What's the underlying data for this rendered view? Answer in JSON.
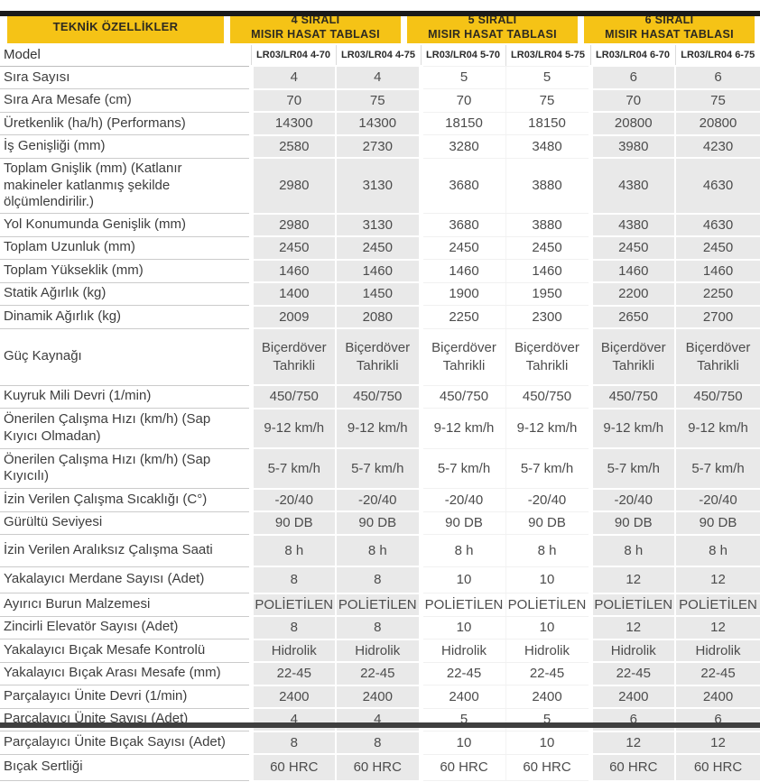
{
  "colors": {
    "accent": "#F5C316",
    "band_gray": "#E9E9E9",
    "bar_dark": "#1A1A1A",
    "bar_bottom": "#3F3F3F"
  },
  "header": {
    "corner": "TEKNİK ÖZELLİKLER",
    "groups": [
      {
        "line1": "4 SIRALI",
        "line2": "MISIR HASAT TABLASI"
      },
      {
        "line1": "5 SIRALI",
        "line2": "MISIR HASAT TABLASI"
      },
      {
        "line1": "6 SIRALI",
        "line2": "MISIR HASAT TABLASI"
      }
    ]
  },
  "table": {
    "model_label": "Model",
    "models": [
      "LR03/LR04 4-70",
      "LR03/LR04 4-75",
      "LR03/LR04 5-70",
      "LR03/LR04 5-75",
      "LR03/LR04 6-70",
      "LR03/LR04 6-75"
    ],
    "rows": [
      {
        "label": "Sıra Sayısı",
        "values": [
          "4",
          "4",
          "5",
          "5",
          "6",
          "6"
        ]
      },
      {
        "label": "Sıra Ara Mesafe (cm)",
        "values": [
          "70",
          "75",
          "70",
          "75",
          "70",
          "75"
        ]
      },
      {
        "label": "Üretkenlik (ha/h) (Performans)",
        "values": [
          "14300",
          "14300",
          "18150",
          "18150",
          "20800",
          "20800"
        ]
      },
      {
        "label": "İş Genişliği (mm)",
        "values": [
          "2580",
          "2730",
          "3280",
          "3480",
          "3980",
          "4230"
        ]
      },
      {
        "label": "Toplam Gnişlik (mm) (Katlanır makineler katlanmış şekilde ölçümlendirilir.)",
        "values": [
          "2980",
          "3130",
          "3680",
          "3880",
          "4380",
          "4630"
        ]
      },
      {
        "label": "Yol Konumunda Genişlik (mm)",
        "values": [
          "2980",
          "3130",
          "3680",
          "3880",
          "4380",
          "4630"
        ]
      },
      {
        "label": "Toplam Uzunluk (mm)",
        "values": [
          "2450",
          "2450",
          "2450",
          "2450",
          "2450",
          "2450"
        ]
      },
      {
        "label": "Toplam Yükseklik (mm)",
        "values": [
          "1460",
          "1460",
          "1460",
          "1460",
          "1460",
          "1460"
        ]
      },
      {
        "label": "Statik Ağırlık (kg)",
        "values": [
          "1400",
          "1450",
          "1900",
          "1950",
          "2200",
          "2250"
        ]
      },
      {
        "label": "Dinamik Ağırlık (kg)",
        "values": [
          "2009",
          "2080",
          "2250",
          "2300",
          "2650",
          "2700"
        ]
      },
      {
        "label": "Güç Kaynağı",
        "values": [
          "Biçerdöver Tahrikli",
          "Biçerdöver Tahrikli",
          "Biçerdöver Tahrikli",
          "Biçerdöver Tahrikli",
          "Biçerdöver Tahrikli",
          "Biçerdöver Tahrikli"
        ]
      },
      {
        "label": "Kuyruk Mili Devri (1/min)",
        "values": [
          "450/750",
          "450/750",
          "450/750",
          "450/750",
          "450/750",
          "450/750"
        ]
      },
      {
        "label": "Önerilen Çalışma Hızı (km/h) (Sap Kıyıcı Olmadan)",
        "values": [
          "9-12 km/h",
          "9-12 km/h",
          "9-12 km/h",
          "9-12 km/h",
          "9-12 km/h",
          "9-12 km/h"
        ]
      },
      {
        "label": "Önerilen Çalışma Hızı (km/h) (Sap Kıyıcılı)",
        "values": [
          "5-7 km/h",
          "5-7 km/h",
          "5-7 km/h",
          "5-7 km/h",
          "5-7 km/h",
          "5-7 km/h"
        ]
      },
      {
        "label": "İzin Verilen Çalışma Sıcaklığı (C°)",
        "values": [
          "-20/40",
          "-20/40",
          "-20/40",
          "-20/40",
          "-20/40",
          "-20/40"
        ]
      },
      {
        "label": "Gürültü Seviyesi",
        "values": [
          "90 DB",
          "90 DB",
          "90 DB",
          "90 DB",
          "90 DB",
          "90 DB"
        ]
      },
      {
        "label": "İzin Verilen Aralıksız Çalışma Saati",
        "values": [
          "8 h",
          "8 h",
          "8 h",
          "8 h",
          "8 h",
          "8 h"
        ]
      },
      {
        "label": "Yakalayıcı Merdane Sayısı (Adet)",
        "values": [
          "8",
          "8",
          "10",
          "10",
          "12",
          "12"
        ]
      },
      {
        "label": "Ayırıcı Burun Malzemesi",
        "values": [
          "POLİETİLEN",
          "POLİETİLEN",
          "POLİETİLEN",
          "POLİETİLEN",
          "POLİETİLEN",
          "POLİETİLEN"
        ]
      },
      {
        "label": "Zincirli Elevatör Sayısı (Adet)",
        "values": [
          "8",
          "8",
          "10",
          "10",
          "12",
          "12"
        ]
      },
      {
        "label": "Yakalayıcı Bıçak Mesafe Kontrolü",
        "values": [
          "Hidrolik",
          "Hidrolik",
          "Hidrolik",
          "Hidrolik",
          "Hidrolik",
          "Hidrolik"
        ]
      },
      {
        "label": "Yakalayıcı Bıçak Arası Mesafe (mm)",
        "values": [
          "22-45",
          "22-45",
          "22-45",
          "22-45",
          "22-45",
          "22-45"
        ]
      },
      {
        "label": "Parçalayıcı Ünite Devri (1/min)",
        "values": [
          "2400",
          "2400",
          "2400",
          "2400",
          "2400",
          "2400"
        ]
      },
      {
        "label": "Parçalayıcı Ünite Sayısı (Adet)",
        "values": [
          "4",
          "4",
          "5",
          "5",
          "6",
          "6"
        ]
      },
      {
        "label": "Parçalayıcı Ünite Bıçak Sayısı (Adet)",
        "values": [
          "8",
          "8",
          "10",
          "10",
          "12",
          "12"
        ]
      },
      {
        "label": "Bıçak Sertliği",
        "values": [
          "60 HRC",
          "60 HRC",
          "60 HRC",
          "60 HRC",
          "60 HRC",
          "60 HRC"
        ]
      }
    ]
  }
}
